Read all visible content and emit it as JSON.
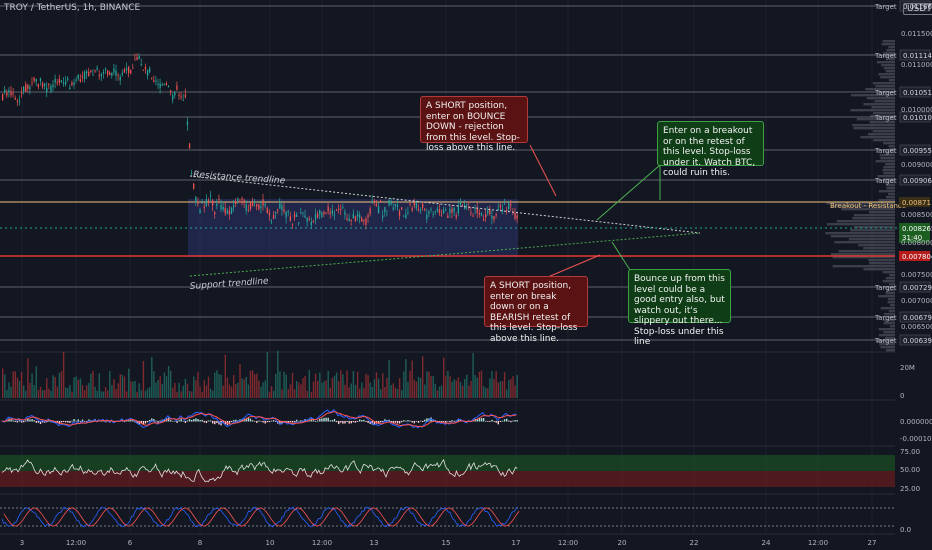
{
  "symbol": "TROY / TetherUS, 1h, BINANCE",
  "currency": "USDT",
  "colors": {
    "bg": "#131722",
    "up": "#26a69a",
    "down": "#ef5350",
    "grid": "#2a2e39",
    "text": "#b2b5be"
  },
  "chart_data": {
    "type": "line",
    "title": "TROY / TetherUS, 1h, BINANCE",
    "y_ticks": [
      "0.011500",
      "0.011000",
      "0.010000",
      "0.009000",
      "0.008500",
      "0.008000",
      "0.007500",
      "0.007000",
      "0.006500"
    ],
    "x_ticks": [
      "3",
      "12:00",
      "6",
      "8",
      "10",
      "12:00",
      "13",
      "15",
      "17",
      "12:00",
      "20",
      "22",
      "24",
      "12:00",
      "27"
    ],
    "target_levels": [
      {
        "label": "Target",
        "value": "0.01166",
        "color": "#b2b5be"
      },
      {
        "label": "Target",
        "value": "0.01114B",
        "color": "#b2b5be"
      },
      {
        "label": "Target",
        "value": "0.010518",
        "color": "#b2b5be"
      },
      {
        "label": "Target",
        "value": "0.010104",
        "color": "#b2b5be"
      },
      {
        "label": "Target",
        "value": "0.009554",
        "color": "#b2b5be"
      },
      {
        "label": "Target",
        "value": "0.009068",
        "color": "#b2b5be"
      },
      {
        "label": "Target",
        "value": "0.007290",
        "color": "#b2b5be"
      },
      {
        "label": "Target",
        "value": "0.006790",
        "color": "#b2b5be"
      },
      {
        "label": "Target",
        "value": "0.006397",
        "color": "#b2b5be"
      }
    ],
    "breakout_level": {
      "label": "Breakout - Resistance",
      "value": "0.008711",
      "color": "#f0c27a"
    },
    "support_level": {
      "value": "0.007804",
      "color": "#e53935"
    },
    "current_price": {
      "value": "0.008265",
      "countdown": "31:40",
      "color": "#1b5e20"
    },
    "trendlines": {
      "resistance": "Resistance trendline",
      "support": "Support trendline"
    },
    "annotations": [
      {
        "id": "short-bounce",
        "color": "red",
        "text": "A SHORT position, enter on BOUNCE DOWN - rejection from this level. Stop-loss above this line."
      },
      {
        "id": "long-breakout",
        "color": "green",
        "text": "Enter on a breakout or on the retest of this level. Stop-loss under it. Watch BTC, could ruin this."
      },
      {
        "id": "short-breakdown",
        "color": "red",
        "text": "A SHORT position, enter on break down or on a BEARISH retest of this level. Stop-loss above this line."
      },
      {
        "id": "long-bounce",
        "color": "green",
        "text": "Bounce up from this level could be a good entry also, but watch out, it's slippery out there... Stop-loss under this line"
      }
    ],
    "volume_axis": [
      "20M",
      "0"
    ],
    "macd_axis": [
      "0.000000",
      "-0.000100"
    ],
    "rsi_axis": [
      "75.00",
      "50.00",
      "25.00"
    ],
    "stoch_axis": [
      "0.0"
    ]
  }
}
